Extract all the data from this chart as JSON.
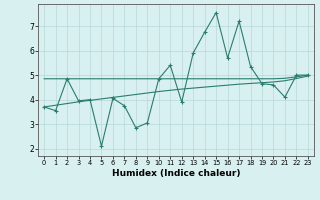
{
  "x": [
    0,
    1,
    2,
    3,
    4,
    5,
    6,
    7,
    8,
    9,
    10,
    11,
    12,
    13,
    14,
    15,
    16,
    17,
    18,
    19,
    20,
    21,
    22,
    23
  ],
  "y_main": [
    3.7,
    3.55,
    4.85,
    3.95,
    4.0,
    2.1,
    4.05,
    3.75,
    2.85,
    3.05,
    4.85,
    5.4,
    3.9,
    5.9,
    6.75,
    7.55,
    5.7,
    7.2,
    5.35,
    4.65,
    4.6,
    4.1,
    5.0,
    5.0
  ],
  "y_upper": [
    4.85,
    4.85,
    4.85,
    4.85,
    4.85,
    4.85,
    4.85,
    4.85,
    4.85,
    4.85,
    4.85,
    4.85,
    4.85,
    4.85,
    4.85,
    4.85,
    4.85,
    4.85,
    4.85,
    4.85,
    4.85,
    4.87,
    4.93,
    5.0
  ],
  "y_lower": [
    3.7,
    3.77,
    3.84,
    3.91,
    3.97,
    4.03,
    4.09,
    4.15,
    4.21,
    4.27,
    4.33,
    4.38,
    4.43,
    4.47,
    4.51,
    4.55,
    4.59,
    4.63,
    4.66,
    4.69,
    4.72,
    4.77,
    4.86,
    4.96
  ],
  "color": "#2a7d6e",
  "bg_color": "#d8f0f0",
  "grid_color": "#b8d8d8",
  "xlabel": "Humidex (Indice chaleur)",
  "xlim": [
    -0.5,
    23.5
  ],
  "ylim": [
    1.7,
    7.9
  ],
  "yticks": [
    2,
    3,
    4,
    5,
    6,
    7
  ],
  "xticks": [
    0,
    1,
    2,
    3,
    4,
    5,
    6,
    7,
    8,
    9,
    10,
    11,
    12,
    13,
    14,
    15,
    16,
    17,
    18,
    19,
    20,
    21,
    22,
    23
  ]
}
